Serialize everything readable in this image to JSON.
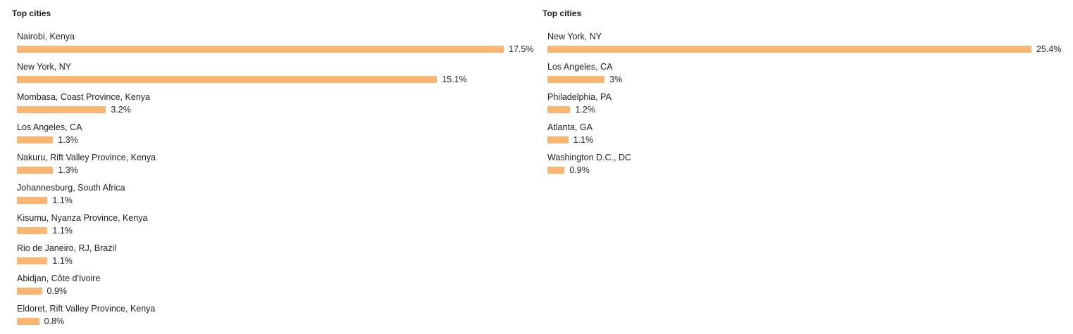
{
  "colors": {
    "bar": "#f9b571"
  },
  "chart_data": [
    {
      "type": "bar",
      "orientation": "horizontal",
      "title": "Top cities",
      "categories": [
        "Nairobi, Kenya",
        "New York, NY",
        "Mombasa, Coast Province, Kenya",
        "Los Angeles, CA",
        "Nakuru, Rift Valley Province, Kenya",
        "Johannesburg, South Africa",
        "Kisumu, Nyanza Province, Kenya",
        "Rio de Janeiro, RJ, Brazil",
        "Abidjan, Côte d'Ivoire",
        "Eldoret, Rift Valley Province, Kenya"
      ],
      "values": [
        17.5,
        15.1,
        3.2,
        1.3,
        1.3,
        1.1,
        1.1,
        1.1,
        0.9,
        0.8
      ],
      "value_labels": [
        "17.5%",
        "15.1%",
        "3.2%",
        "1.3%",
        "1.3%",
        "1.1%",
        "1.1%",
        "1.1%",
        "0.9%",
        "0.8%"
      ],
      "unit": "%"
    },
    {
      "type": "bar",
      "orientation": "horizontal",
      "title": "Top cities",
      "categories": [
        "New York, NY",
        "Los Angeles, CA",
        "Philadelphia, PA",
        "Atlanta, GA",
        "Washington D.C., DC"
      ],
      "values": [
        25.4,
        3,
        1.2,
        1.1,
        0.9
      ],
      "value_labels": [
        "25.4%",
        "3%",
        "1.2%",
        "1.1%",
        "0.9%"
      ],
      "unit": "%"
    }
  ]
}
